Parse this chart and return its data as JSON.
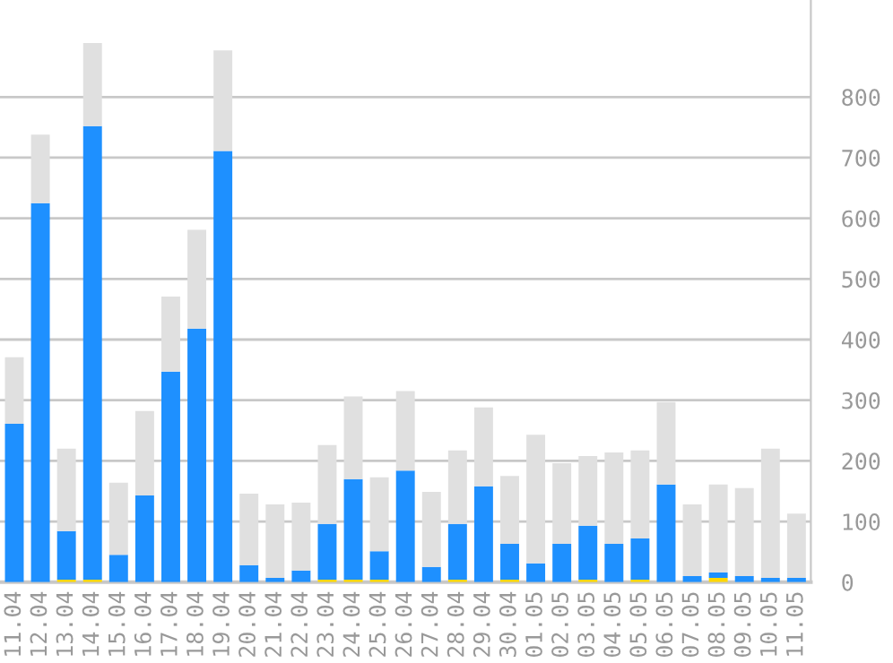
{
  "chart_data": {
    "type": "bar",
    "stacked": true,
    "categories": [
      "11.04",
      "12.04",
      "13.04",
      "14.04",
      "15.04",
      "16.04",
      "17.04",
      "18.04",
      "19.04",
      "20.04",
      "21.04",
      "22.04",
      "23.04",
      "24.04",
      "25.04",
      "26.04",
      "27.04",
      "28.04",
      "29.04",
      "30.04",
      "01.05",
      "02.05",
      "03.05",
      "04.05",
      "05.05",
      "06.05",
      "07.05",
      "08.05",
      "09.05",
      "10.05",
      "11.05"
    ],
    "series": [
      {
        "color": "#ffd700",
        "values": [
          null,
          null,
          4,
          4,
          null,
          null,
          null,
          null,
          null,
          null,
          null,
          null,
          4,
          4,
          4,
          null,
          null,
          4,
          null,
          4,
          null,
          null,
          4,
          null,
          4,
          null,
          null,
          7,
          null,
          null,
          null
        ]
      },
      {
        "color": "#1e90ff",
        "values": [
          261,
          625,
          80,
          748,
          45,
          143,
          347,
          418,
          711,
          28,
          7,
          19,
          92,
          166,
          47,
          184,
          25,
          92,
          158,
          59,
          31,
          63,
          89,
          63,
          68,
          161,
          10,
          9,
          10,
          7,
          7
        ]
      },
      {
        "color": "#e0e0e0",
        "values": [
          110,
          113,
          136,
          137,
          119,
          139,
          124,
          163,
          166,
          118,
          121,
          112,
          130,
          136,
          122,
          131,
          124,
          121,
          130,
          112,
          212,
          133,
          115,
          151,
          145,
          136,
          118,
          145,
          145,
          213,
          106
        ]
      }
    ],
    "ylim": [
      0,
      960
    ],
    "yticks": [
      0,
      100,
      200,
      300,
      400,
      500,
      600,
      700,
      800
    ],
    "grid": "y"
  }
}
